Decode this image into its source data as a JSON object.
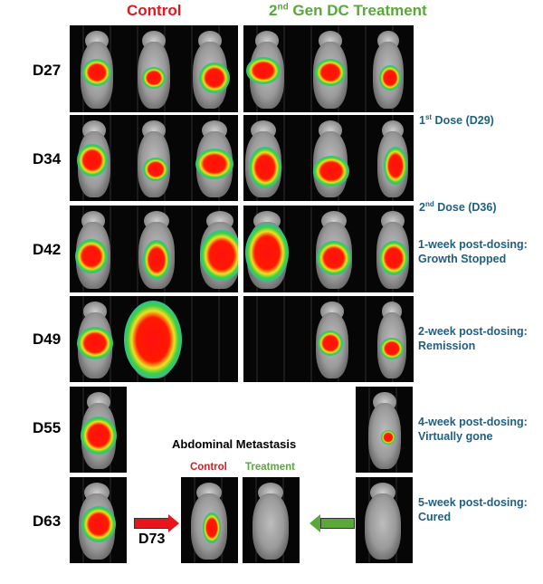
{
  "headers": {
    "control": "Control",
    "treatment_prefix": "2",
    "treatment_sup": "nd",
    "treatment_suffix": " Gen DC Treatment"
  },
  "days": [
    "D27",
    "D34",
    "D42",
    "D49",
    "D55",
    "D63"
  ],
  "notes": {
    "dose1_prefix": "1",
    "dose1_sup": "st",
    "dose1_suffix": " Dose (D29)",
    "dose2_prefix": "2",
    "dose2_sup": "nd",
    "dose2_suffix": " Dose (D36)",
    "week1_line1": "1-week post-dosing:",
    "week1_line2": "Growth Stopped",
    "week2_line1": "2-week post-dosing:",
    "week2_line2": "Remission",
    "week4_line1": "4-week post-dosing:",
    "week4_line2": "Virtually gone",
    "week5_line1": "5-week post-dosing:",
    "week5_line2": "Cured"
  },
  "metastasis": {
    "title": "Abdominal Metastasis",
    "control": "Control",
    "treatment": "Treatment",
    "day": "D73"
  },
  "colors": {
    "control": "#e8161b",
    "treatment": "#5aa83a",
    "notes": "#1f5f80"
  }
}
